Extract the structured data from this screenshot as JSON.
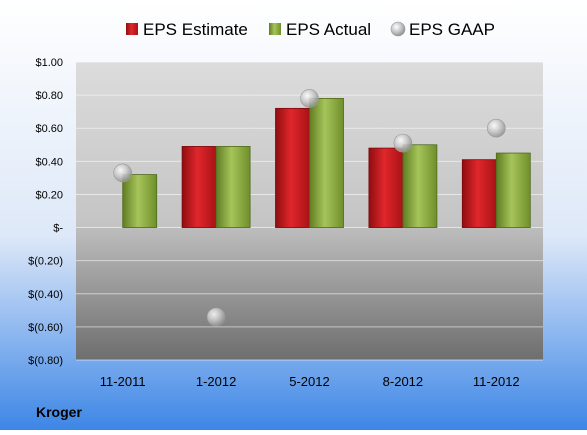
{
  "chart_data": {
    "type": "bar",
    "categories": [
      "11-2011",
      "1-2012",
      "5-2012",
      "8-2012",
      "11-2012"
    ],
    "series": [
      {
        "name": "EPS Estimate",
        "kind": "bar",
        "color": "#c8191e",
        "values": [
          null,
          0.49,
          0.72,
          0.48,
          0.41
        ]
      },
      {
        "name": "EPS Actual",
        "kind": "bar",
        "color": "#8aab3c",
        "values": [
          0.32,
          0.49,
          0.78,
          0.5,
          0.45
        ]
      },
      {
        "name": "EPS GAAP",
        "kind": "marker",
        "color": "#b8b8b8",
        "values": [
          0.33,
          -0.54,
          0.78,
          0.51,
          0.6
        ]
      }
    ],
    "ylim": [
      -0.8,
      1.0
    ],
    "yticks": [
      {
        "value": 1.0,
        "label": "$1.00"
      },
      {
        "value": 0.8,
        "label": "$0.80"
      },
      {
        "value": 0.6,
        "label": "$0.60"
      },
      {
        "value": 0.4,
        "label": "$0.40"
      },
      {
        "value": 0.2,
        "label": "$0.20"
      },
      {
        "value": 0.0,
        "label": "$-"
      },
      {
        "value": -0.2,
        "label": "$(0.20)"
      },
      {
        "value": -0.4,
        "label": "$(0.40)"
      },
      {
        "value": -0.6,
        "label": "$(0.60)"
      },
      {
        "value": -0.8,
        "label": "$(0.80)"
      }
    ],
    "grid": true,
    "legend_position": "top",
    "company_label": "Kroger"
  }
}
